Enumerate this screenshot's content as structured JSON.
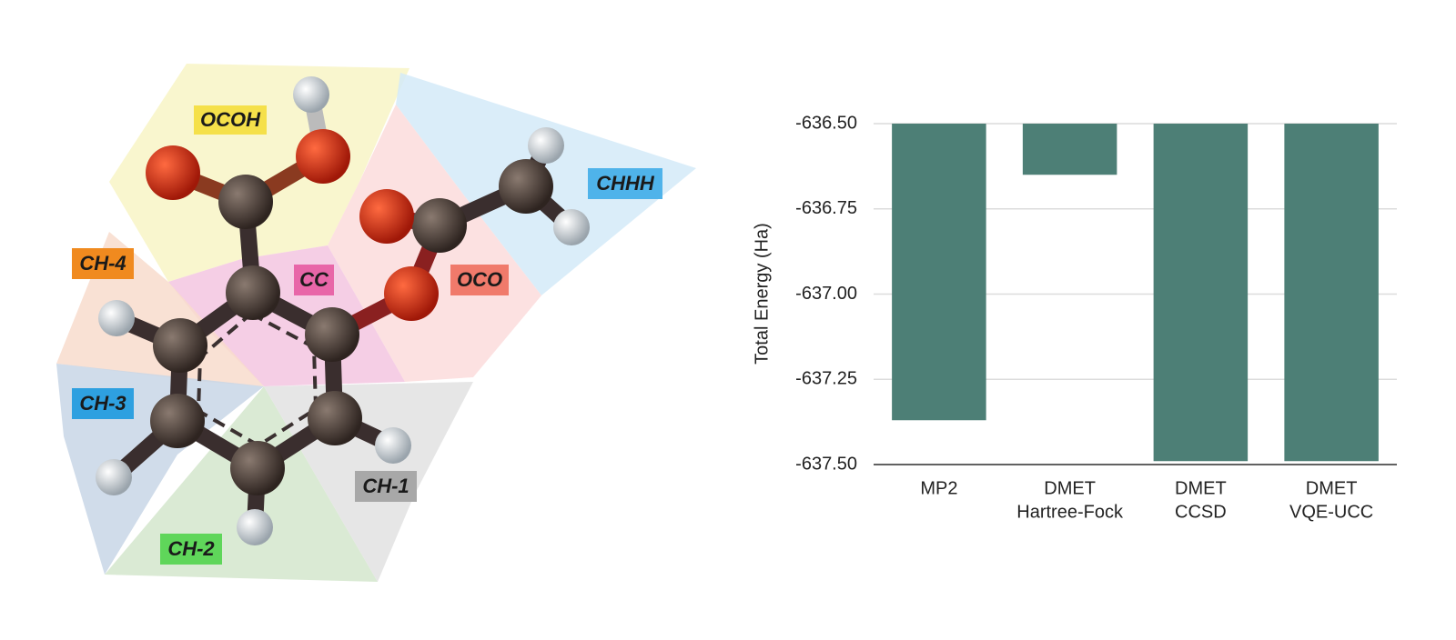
{
  "diagram": {
    "fragments": [
      "OCOH",
      "CHHH",
      "CC",
      "OCO",
      "CH-4",
      "CH-3",
      "CH-1",
      "CH-2"
    ]
  },
  "chart_data": {
    "type": "bar",
    "y_axis_label": "Total Energy (Ha)",
    "categories": [
      [
        "MP2"
      ],
      [
        "DMET",
        "Hartree-Fock"
      ],
      [
        "DMET",
        "CCSD"
      ],
      [
        "DMET",
        "VQE-UCC"
      ]
    ],
    "values": [
      -637.37,
      -636.65,
      -637.49,
      -637.49
    ],
    "color": "#4d7f76",
    "ylim": [
      -637.5,
      -636.5
    ],
    "yticks": [
      {
        "value": -636.5,
        "label": "-636.50"
      },
      -636.75,
      {
        "value": -637.0,
        "label": "-637.00"
      },
      -637.25,
      {
        "value": -637.5,
        "label": "-637.50"
      }
    ],
    "grid": true
  }
}
